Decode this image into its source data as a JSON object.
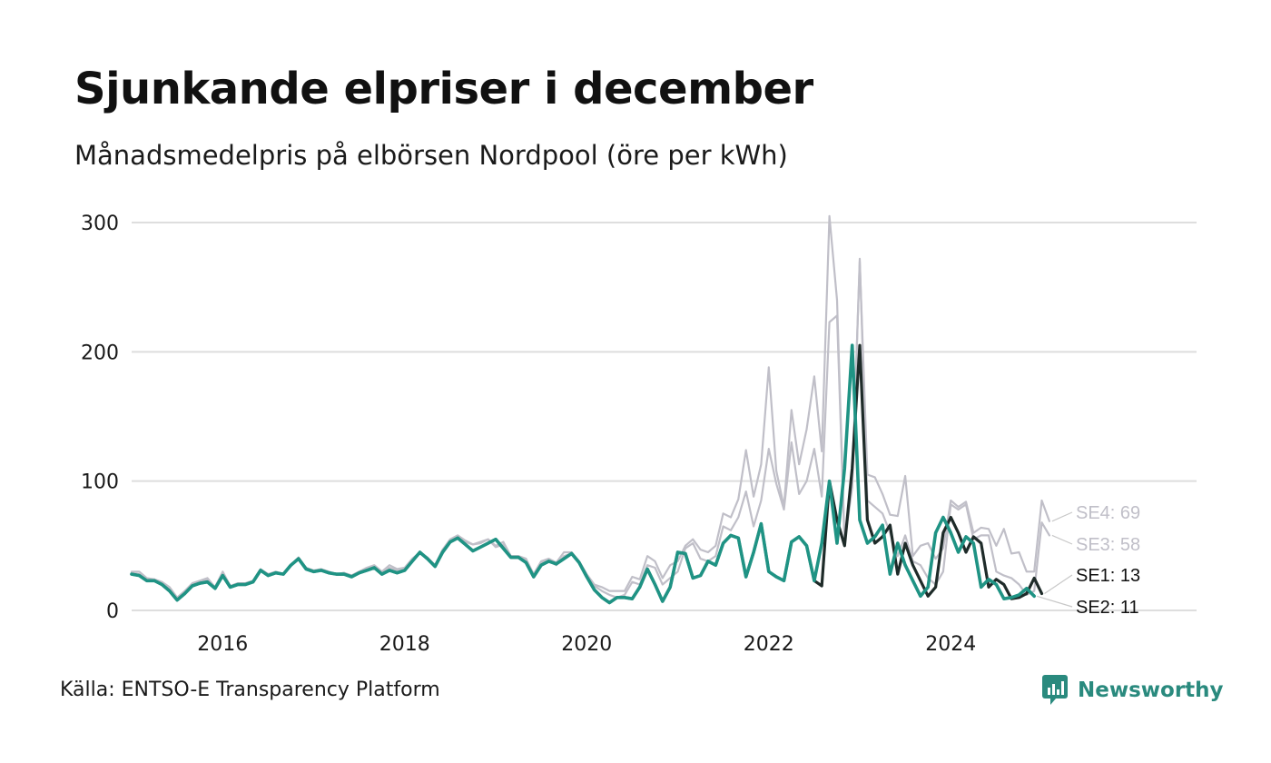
{
  "header": {
    "title": "Sjunkande elpriser i december",
    "subtitle": "Månadsmedelpris på elbörsen Nordpool (öre per kWh)"
  },
  "footer": {
    "source": "Källa: ENTSO-E Transparency Platform",
    "brand": "Newsworthy"
  },
  "colors": {
    "grid": "#dedede",
    "gray_series": "#c0bfc8",
    "se1": "#1e2b29",
    "se2": "#1f9384",
    "brand": "#2a8a7e"
  },
  "chart_data": {
    "type": "line",
    "title": "Sjunkande elpriser i december",
    "subtitle": "Månadsmedelpris på elbörsen Nordpool (öre per kWh)",
    "xlabel": "",
    "ylabel": "",
    "x_start": 2015.0,
    "x_step": 0.08333,
    "xlim": [
      2015.0,
      2026.7
    ],
    "ylim": [
      0,
      300
    ],
    "x_ticks": [
      2016,
      2018,
      2020,
      2022,
      2024
    ],
    "x_tick_labels": [
      "2016",
      "2018",
      "2020",
      "2022",
      "2024"
    ],
    "y_ticks": [
      0,
      100,
      200,
      300
    ],
    "y_tick_labels": [
      "0",
      "100",
      "200",
      "300"
    ],
    "grid": true,
    "legend": "end-labels",
    "series": [
      {
        "name": "SE4",
        "end_label": "SE4: 69",
        "color": "#c0bfc8",
        "values": [
          30,
          30,
          25,
          24,
          22,
          18,
          10,
          15,
          21,
          23,
          25,
          18,
          30,
          19,
          21,
          21,
          23,
          32,
          28,
          30,
          28,
          35,
          41,
          33,
          31,
          32,
          30,
          28,
          29,
          27,
          30,
          33,
          35,
          30,
          35,
          32,
          33,
          40,
          45,
          41,
          35,
          47,
          55,
          58,
          54,
          51,
          53,
          55,
          50,
          53,
          42,
          42,
          40,
          28,
          38,
          40,
          37,
          45,
          45,
          38,
          28,
          20,
          18,
          15,
          15,
          15,
          26,
          24,
          42,
          38,
          25,
          35,
          38,
          50,
          55,
          47,
          45,
          50,
          75,
          72,
          86,
          124,
          88,
          113,
          188,
          108,
          80,
          155,
          113,
          140,
          181,
          123,
          305,
          240,
          52,
          100,
          270,
          105,
          103,
          90,
          74,
          73,
          104,
          42,
          50,
          52,
          40,
          48,
          85,
          80,
          84,
          60,
          64,
          63,
          50,
          63,
          44,
          45,
          30,
          30,
          85,
          69
        ]
      },
      {
        "name": "SE3",
        "end_label": "SE3: 58",
        "color": "#c0bfc8",
        "values": [
          29,
          28,
          24,
          24,
          21,
          17,
          9,
          13,
          19,
          22,
          24,
          17,
          28,
          18,
          20,
          20,
          22,
          31,
          28,
          29,
          28,
          35,
          40,
          33,
          30,
          31,
          29,
          28,
          29,
          27,
          30,
          32,
          34,
          29,
          33,
          31,
          33,
          39,
          44,
          40,
          34,
          45,
          53,
          57,
          53,
          51,
          52,
          55,
          49,
          51,
          42,
          42,
          38,
          27,
          37,
          38,
          35,
          42,
          44,
          37,
          27,
          19,
          15,
          12,
          10,
          12,
          22,
          20,
          35,
          33,
          20,
          25,
          30,
          48,
          52,
          40,
          38,
          42,
          65,
          62,
          72,
          92,
          65,
          85,
          125,
          98,
          78,
          130,
          90,
          100,
          125,
          88,
          223,
          228,
          53,
          95,
          272,
          85,
          80,
          75,
          60,
          42,
          58,
          38,
          35,
          25,
          20,
          30,
          82,
          78,
          82,
          55,
          58,
          58,
          30,
          27,
          25,
          20,
          12,
          15,
          68,
          58
        ]
      },
      {
        "name": "SE1",
        "end_label": "SE1: 13",
        "color": "#1e2b29",
        "values": [
          28,
          27,
          23,
          23,
          20,
          15,
          8,
          13,
          19,
          21,
          22,
          17,
          27,
          18,
          20,
          20,
          22,
          31,
          27,
          29,
          28,
          35,
          40,
          32,
          30,
          31,
          29,
          28,
          28,
          26,
          29,
          31,
          33,
          28,
          31,
          29,
          31,
          38,
          45,
          40,
          34,
          45,
          53,
          56,
          51,
          46,
          49,
          52,
          55,
          48,
          41,
          41,
          37,
          26,
          35,
          38,
          36,
          40,
          44,
          37,
          26,
          16,
          10,
          6,
          10,
          10,
          9,
          18,
          32,
          20,
          7,
          18,
          45,
          44,
          25,
          27,
          38,
          35,
          52,
          58,
          56,
          26,
          45,
          67,
          30,
          26,
          23,
          53,
          57,
          50,
          23,
          19,
          100,
          70,
          50,
          110,
          205,
          70,
          52,
          57,
          66,
          28,
          52,
          35,
          23,
          11,
          18,
          60,
          72,
          60,
          45,
          57,
          52,
          18,
          24,
          20,
          9,
          10,
          13,
          25,
          13
        ]
      },
      {
        "name": "SE2",
        "end_label": "SE2: 11",
        "color": "#1f9384",
        "values": [
          28,
          27,
          23,
          23,
          20,
          15,
          8,
          13,
          19,
          21,
          22,
          17,
          27,
          18,
          20,
          20,
          22,
          31,
          27,
          29,
          28,
          35,
          40,
          32,
          30,
          31,
          29,
          28,
          28,
          26,
          29,
          31,
          33,
          28,
          31,
          29,
          31,
          38,
          45,
          40,
          34,
          45,
          53,
          56,
          51,
          46,
          49,
          52,
          55,
          48,
          41,
          41,
          37,
          26,
          35,
          38,
          36,
          40,
          44,
          37,
          26,
          16,
          10,
          6,
          10,
          10,
          9,
          18,
          32,
          20,
          7,
          18,
          45,
          44,
          25,
          27,
          38,
          35,
          52,
          58,
          56,
          26,
          45,
          67,
          30,
          26,
          23,
          53,
          57,
          50,
          23,
          52,
          100,
          52,
          110,
          205,
          70,
          52,
          57,
          66,
          28,
          52,
          35,
          23,
          11,
          18,
          60,
          72,
          60,
          45,
          57,
          52,
          18,
          24,
          20,
          9,
          10,
          12,
          17,
          11
        ]
      }
    ]
  }
}
